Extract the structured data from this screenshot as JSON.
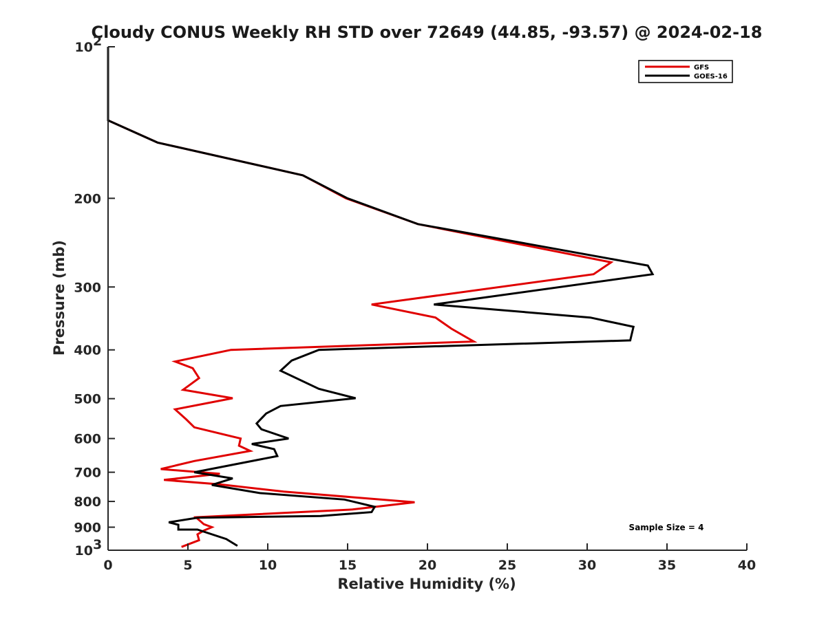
{
  "chart_data": {
    "type": "line",
    "title": "Cloudy CONUS Weekly RH STD over 72649 (44.85, -93.57) @ 2024-02-18",
    "xlabel": "Relative Humidity (%)",
    "ylabel": "Pressure (mb)",
    "xlim": [
      0,
      40
    ],
    "ylim": [
      100,
      1000
    ],
    "y_scale": "log",
    "y_reversed": true,
    "xticks": [
      "0",
      "5",
      "10",
      "15",
      "20",
      "25",
      "30",
      "35",
      "40"
    ],
    "yticks": [
      {
        "value": 100,
        "base": "10",
        "exp": "2"
      },
      {
        "value": 200,
        "label": "200"
      },
      {
        "value": 300,
        "label": "300"
      },
      {
        "value": 400,
        "label": "400"
      },
      {
        "value": 500,
        "label": "500"
      },
      {
        "value": 600,
        "label": "600"
      },
      {
        "value": 700,
        "label": "700"
      },
      {
        "value": 800,
        "label": "800"
      },
      {
        "value": 900,
        "label": "900"
      },
      {
        "value": 1000,
        "base": "10",
        "exp": "3"
      }
    ],
    "grid": false,
    "legend_position": "top-right",
    "annotation": "Sample Size = 4",
    "series": [
      {
        "name": "GFS",
        "color": "#e00000",
        "x": [
          0,
          0,
          3.1,
          12.2,
          14.9,
          19.4,
          31.5,
          30.4,
          16.5,
          20.5,
          21.5,
          22.9,
          7.7,
          4.2,
          5.3,
          5.7,
          4.7,
          7.8,
          4.2,
          4.9,
          5.4,
          8.3,
          8.2,
          8.9,
          5.4,
          3.3,
          7.0,
          3.5,
          7.0,
          11.0,
          19.2,
          15.3,
          5.5,
          6.0,
          6.5,
          6.0,
          5.6,
          5.7,
          4.6
        ],
        "y": [
          100,
          140,
          155,
          180,
          200,
          225,
          268,
          283,
          325,
          345,
          363,
          385,
          400,
          422,
          435,
          455,
          480,
          499,
          525,
          550,
          570,
          600,
          620,
          635,
          665,
          690,
          705,
          725,
          740,
          765,
          803,
          830,
          860,
          888,
          900,
          914,
          930,
          955,
          985
        ]
      },
      {
        "name": "GOES-16",
        "color": "#000000",
        "x": [
          0,
          0,
          3.1,
          12.2,
          15.0,
          19.4,
          33.8,
          34.1,
          20.4,
          30.2,
          32.9,
          32.7,
          13.2,
          11.5,
          10.8,
          13.2,
          15.5,
          10.8,
          9.9,
          9.3,
          9.6,
          11.3,
          9.0,
          10.4,
          10.6,
          5.4,
          7.8,
          6.5,
          9.5,
          14.8,
          16.7,
          16.5,
          13.3,
          5.6,
          3.8,
          4.4,
          4.4,
          5.6,
          7.4,
          8.1
        ],
        "y": [
          100,
          140,
          155,
          180,
          200,
          225,
          272,
          283,
          325,
          345,
          360,
          383,
          400,
          420,
          440,
          478,
          499,
          517,
          535,
          560,
          575,
          600,
          615,
          630,
          650,
          700,
          720,
          742,
          770,
          793,
          820,
          840,
          855,
          862,
          880,
          890,
          910,
          910,
          950,
          980
        ]
      }
    ]
  }
}
